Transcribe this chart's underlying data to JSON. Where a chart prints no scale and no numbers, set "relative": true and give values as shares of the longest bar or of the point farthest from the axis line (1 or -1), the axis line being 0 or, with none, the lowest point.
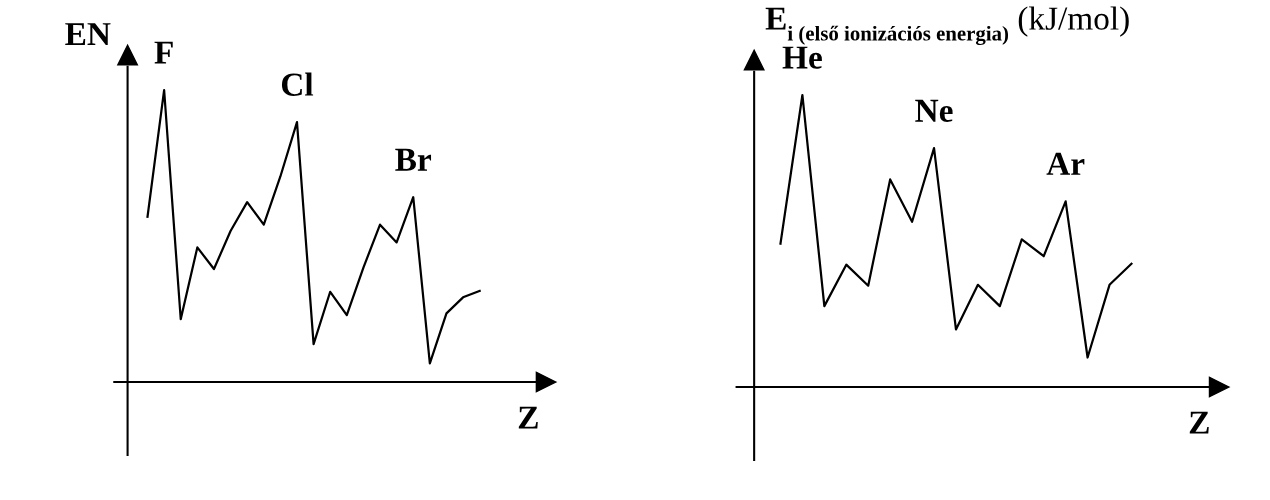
{
  "chart_data": [
    {
      "type": "line",
      "relative": true,
      "ylabel": "EN",
      "xlabel": "Z",
      "categories": [
        null,
        null,
        null,
        null,
        null,
        null,
        null,
        null,
        null,
        null,
        null,
        null,
        null,
        null,
        null,
        null,
        null,
        null,
        null,
        null,
        null
      ],
      "series": [
        {
          "color": "#000000",
          "values": [
            0.566,
            1.0,
            0.215,
            0.461,
            0.387,
            0.517,
            0.616,
            0.539,
            0.704,
            0.89,
            0.13,
            0.309,
            0.229,
            0.392,
            0.539,
            0.478,
            0.633,
            0.064,
            0.235,
            0.29,
            0.312
          ]
        }
      ],
      "annotations": [
        {
          "text": "F",
          "y": 1.0
        },
        {
          "text": "Cl",
          "y": 0.89
        },
        {
          "text": "Br",
          "y": 0.633
        }
      ],
      "marker": "none",
      "line_style": "solid",
      "grid": false,
      "legend": false
    },
    {
      "type": "line",
      "relative": true,
      "ylabel": "E$_{i (első ionizációs energia)}$ (kJ/mol)",
      "xlabel": "Z",
      "categories": [
        null,
        null,
        null,
        null,
        null,
        null,
        null,
        null,
        null,
        null,
        null,
        null,
        null,
        null,
        null,
        null,
        null
      ],
      "series": [
        {
          "color": "#000000",
          "values": [
            0.491,
            1.0,
            0.277,
            0.419,
            0.347,
            0.711,
            0.566,
            0.818,
            0.197,
            0.35,
            0.277,
            0.506,
            0.448,
            0.636,
            0.101,
            0.35,
            0.422
          ]
        }
      ],
      "annotations": [
        {
          "text": "He",
          "y": 1.0
        },
        {
          "text": "Ne",
          "y": 0.818
        },
        {
          "text": "Ar",
          "y": 0.636
        }
      ],
      "marker": "none",
      "line_style": "solid",
      "grid": false,
      "legend": false
    }
  ]
}
